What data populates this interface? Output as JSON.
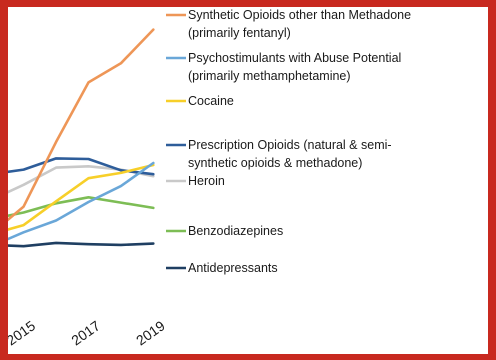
{
  "colors": {
    "border": "#c8291f",
    "background": "#ffffff"
  },
  "chart_data": {
    "type": "line",
    "title": "",
    "xlabel": "",
    "ylabel": "",
    "x": [
      2013,
      2014,
      2015,
      2016,
      2017,
      2018,
      2019
    ],
    "xticks": [
      "2015",
      "2017",
      "2019"
    ],
    "xlim": [
      2013.9,
      2019.3
    ],
    "ylim": [
      0,
      38
    ],
    "grid": false,
    "legend_position": "right",
    "series": [
      {
        "name_lines": [
          "Synthetic Opioids other than Methadone",
          "(primarily fentanyl)"
        ],
        "color": "#ee9657",
        "values": [
          3.1,
          5.5,
          9.6,
          19.4,
          28.4,
          31.3,
          36.4
        ]
      },
      {
        "name_lines": [
          "Psychostimulants with Abuse Potential",
          "(primarily methamphetamine)"
        ],
        "color": "#6aa7d8",
        "values": [
          3.0,
          3.6,
          5.7,
          7.5,
          10.3,
          12.7,
          16.2
        ]
      },
      {
        "name_lines": [
          "Cocaine"
        ],
        "color": "#f7cf29",
        "values": [
          4.9,
          5.4,
          6.8,
          10.4,
          13.9,
          14.7,
          15.9
        ]
      },
      {
        "name_lines": [
          "Prescription Opioids (natural & semi-",
          "synthetic opioids & methadone)"
        ],
        "color": "#2e5d9a",
        "values": [
          14.1,
          14.5,
          15.2,
          16.9,
          16.8,
          15.1,
          14.5
        ]
      },
      {
        "name_lines": [
          "Heroin"
        ],
        "color": "#c9c9c9",
        "values": [
          8.0,
          10.6,
          12.9,
          15.5,
          15.7,
          15.2,
          14.2
        ]
      },
      {
        "name_lines": [
          "Benzodiazepines"
        ],
        "color": "#7dbd55",
        "values": [
          6.9,
          7.7,
          8.7,
          10.1,
          11.0,
          10.2,
          9.4
        ]
      },
      {
        "name_lines": [
          "Antidepressants"
        ],
        "color": "#1f3f62",
        "values": [
          3.6,
          3.8,
          3.6,
          4.1,
          3.9,
          3.8,
          4.0
        ]
      }
    ]
  }
}
